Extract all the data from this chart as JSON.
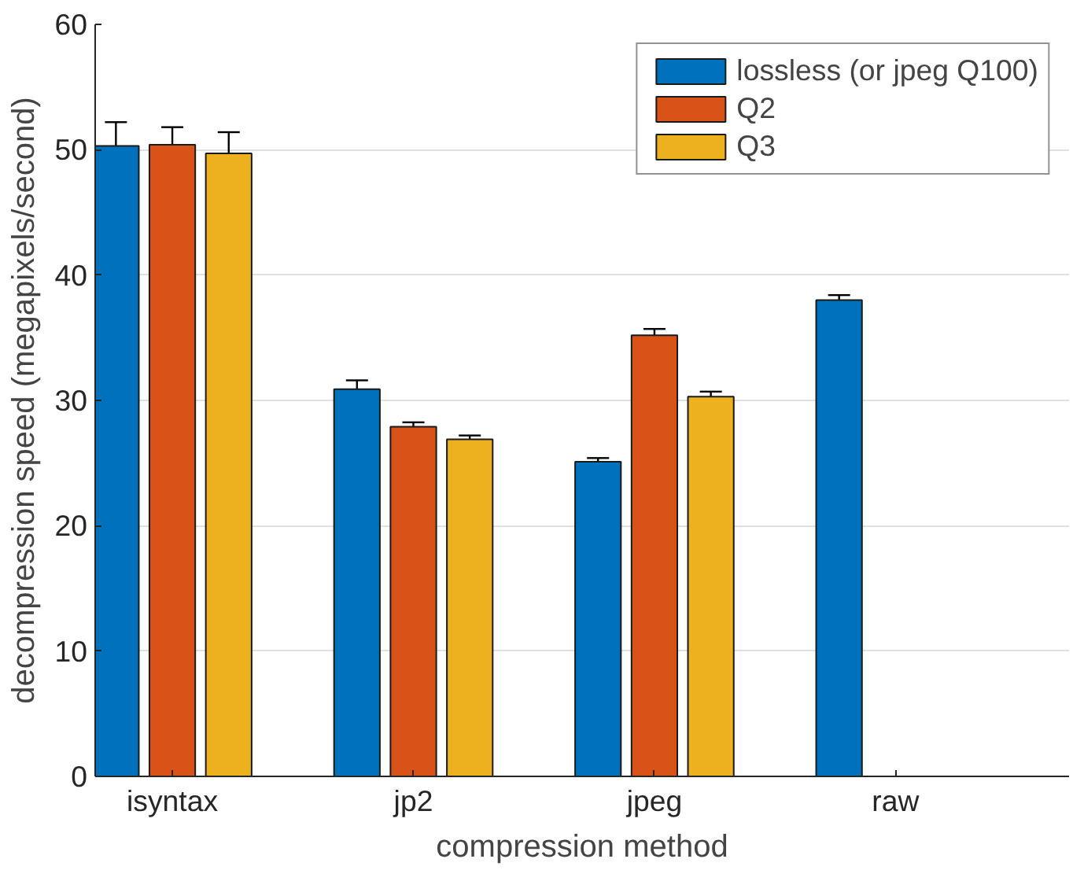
{
  "chart_data": {
    "type": "bar",
    "xlabel": "compression method",
    "ylabel": "decompression speed (megapixels/second)",
    "categories": [
      "isyntax",
      "jp2",
      "jpeg",
      "raw"
    ],
    "series": [
      {
        "name": "lossless (or jpeg Q100)",
        "color": "#0072bd",
        "values": [
          50.3,
          30.9,
          25.1,
          38.0
        ],
        "errors": [
          1.9,
          0.7,
          0.3,
          0.4
        ]
      },
      {
        "name": "Q2",
        "color": "#d95319",
        "values": [
          50.4,
          27.9,
          35.2,
          null
        ],
        "errors": [
          1.4,
          0.35,
          0.5,
          null
        ]
      },
      {
        "name": "Q3",
        "color": "#edb120",
        "values": [
          49.7,
          26.9,
          30.3,
          null
        ],
        "errors": [
          1.7,
          0.3,
          0.4,
          null
        ]
      }
    ],
    "ylim": [
      0,
      60
    ],
    "yticks": [
      0,
      10,
      20,
      30,
      40,
      50,
      60
    ],
    "grid": "y",
    "legend": "top right"
  }
}
